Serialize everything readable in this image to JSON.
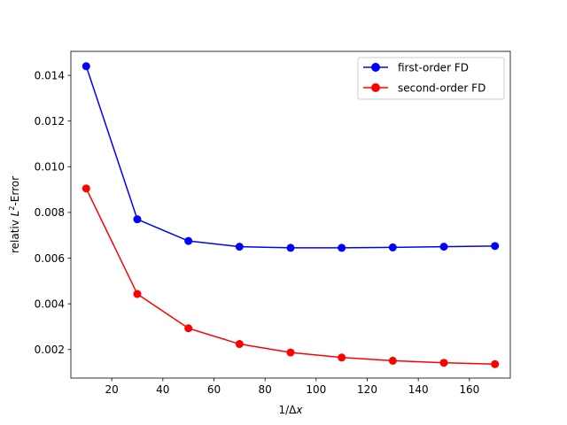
{
  "chart_data": {
    "type": "line",
    "title": "",
    "xlabel_prefix": "1/Δ",
    "xlabel_var": "x",
    "ylabel_prefix": "relativ ",
    "ylabel_var": "L",
    "ylabel_sup": "2",
    "ylabel_suffix": "-Error",
    "xlim": [
      4,
      176
    ],
    "ylim": [
      0.00075,
      0.01505
    ],
    "xticks": [
      20,
      40,
      60,
      80,
      100,
      120,
      140,
      160
    ],
    "xtick_labels": [
      "20",
      "40",
      "60",
      "80",
      "100",
      "120",
      "140",
      "160"
    ],
    "yticks": [
      0.002,
      0.004,
      0.006,
      0.008,
      0.01,
      0.012,
      0.014
    ],
    "ytick_labels": [
      "0.002",
      "0.004",
      "0.006",
      "0.008",
      "0.010",
      "0.012",
      "0.014"
    ],
    "grid": false,
    "legend_position": "top-right",
    "x": [
      10,
      30,
      50,
      70,
      90,
      110,
      130,
      150,
      170
    ],
    "series": [
      {
        "name": "first-order FD",
        "color": "#0000ff",
        "marker": "circle",
        "values": [
          0.0144,
          0.0077,
          0.00675,
          0.0065,
          0.00645,
          0.00645,
          0.00647,
          0.0065,
          0.00653
        ]
      },
      {
        "name": "second-order FD",
        "color": "#ff0000",
        "marker": "circle",
        "values": [
          0.00905,
          0.00443,
          0.00293,
          0.00224,
          0.00187,
          0.00165,
          0.00151,
          0.00142,
          0.00136
        ]
      }
    ]
  }
}
